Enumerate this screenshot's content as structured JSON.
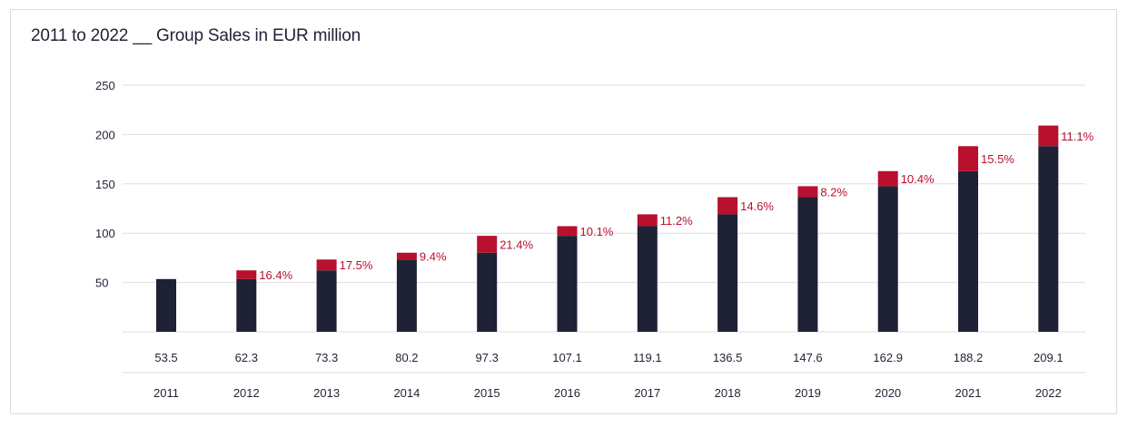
{
  "chart_data": {
    "type": "bar",
    "stacked": true,
    "title": "2011 to 2022 __ Group Sales in EUR million",
    "xlabel": "",
    "ylabel": "",
    "categories": [
      "2011",
      "2012",
      "2013",
      "2014",
      "2015",
      "2016",
      "2017",
      "2018",
      "2019",
      "2020",
      "2021",
      "2022"
    ],
    "values": [
      53.5,
      62.3,
      73.3,
      80.2,
      97.3,
      107.1,
      119.1,
      136.5,
      147.6,
      162.9,
      188.2,
      209.1
    ],
    "value_labels": [
      "53.5",
      "62.3",
      "73.3",
      "80.2",
      "97.3",
      "107.1",
      "119.1",
      "136.5",
      "147.6",
      "162.9",
      "188.2",
      "209.1"
    ],
    "growth_labels": [
      "",
      "16.4%",
      "17.5%",
      "9.4%",
      "21.4%",
      "10.1%",
      "11.2%",
      "14.6%",
      "8.2%",
      "10.4%",
      "15.5%",
      "11.1%"
    ],
    "yticks": [
      50,
      100,
      150,
      200,
      250
    ],
    "ytick_labels": [
      "50",
      "100",
      "150",
      "200",
      "250"
    ],
    "ylim": [
      0,
      250
    ],
    "grid": true,
    "legend": "none",
    "colors": {
      "base": "#1f2235",
      "increase": "#b8102e",
      "growth_text": "#b8102e",
      "grid": "#dedede"
    }
  }
}
